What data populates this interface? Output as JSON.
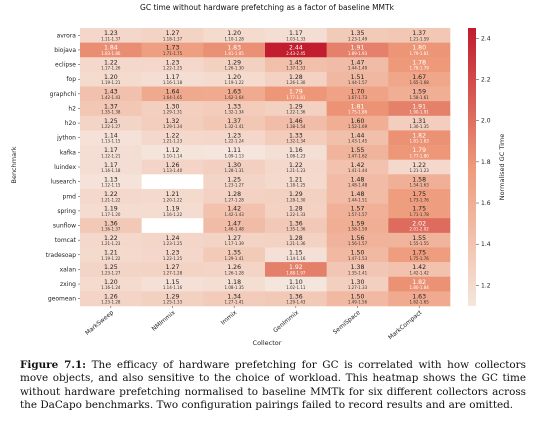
{
  "caption": {
    "label": "Figure 7.1:",
    "text": "The efficacy of hardware prefetching for GC is correlated with how collectors move objects, and also sensitive to the choice of workload. This heatmap shows the GC time without hardware prefetching normalised to baseline MMTk for six different collectors across the DaCapo benchmarks. Two configuration pairings failed to record results and are omitted."
  },
  "colors": {
    "low": "#f5e6dd",
    "mid": "#ee9a7a",
    "high": "#c01b2d",
    "missing": "#ffffff"
  },
  "chart_data": {
    "type": "heatmap",
    "title": "GC time without hardware prefetching as a factor of baseline MMTk",
    "xlabel": "Collector",
    "ylabel": "Benchmark",
    "colorbar_label": "Normalised GC Time",
    "colorbar_range": [
      1.1,
      2.45
    ],
    "colorbar_ticks": [
      "1.2",
      "1.4",
      "1.6",
      "1.8",
      "2.0",
      "2.2",
      "2.4"
    ],
    "columns": [
      "MarkSweep",
      "NMImmix",
      "Immix",
      "GenImmix",
      "SemiSpace",
      "MarkCompact"
    ],
    "rows": [
      {
        "name": "avrora",
        "values": [
          1.23,
          1.27,
          1.2,
          1.17,
          1.35,
          1.37
        ],
        "ci": [
          "1.11-1.37",
          "1.18-1.37",
          "1.10-1.28",
          "1.03-1.33",
          "1.23-1.49",
          "1.21-1.59"
        ]
      },
      {
        "name": "biojava",
        "values": [
          1.84,
          1.73,
          1.83,
          2.44,
          1.91,
          1.8
        ],
        "ci": [
          "1.83-1.86",
          "1.71-1.75",
          "1.81-1.85",
          "2.43-2.45",
          "1.89-1.93",
          "1.79-1.81"
        ]
      },
      {
        "name": "eclipse",
        "values": [
          1.22,
          1.23,
          1.29,
          1.45,
          1.47,
          1.78
        ],
        "ci": [
          "1.17-1.26",
          "1.22-1.25",
          "1.26-1.30",
          "1.37-1.53",
          "1.44-1.49",
          "1.78-1.79"
        ]
      },
      {
        "name": "fop",
        "values": [
          1.2,
          1.17,
          1.2,
          1.28,
          1.51,
          1.67
        ],
        "ci": [
          "1.19-1.21",
          "1.16-1.18",
          "1.19-1.22",
          "1.26-1.30",
          "1.44-1.57",
          "1.65-1.68"
        ]
      },
      {
        "name": "graphchi",
        "values": [
          1.43,
          1.64,
          1.63,
          1.79,
          1.7,
          1.59
        ],
        "ci": [
          "1.42-1.43",
          "1.64-1.65",
          "1.62-1.64",
          "1.77-1.81",
          "1.67-1.73",
          "1.58-1.61"
        ]
      },
      {
        "name": "h2",
        "values": [
          1.37,
          1.3,
          1.33,
          1.29,
          1.81,
          1.91
        ],
        "ci": [
          "1.35-1.38",
          "1.29-1.31",
          "1.32-1.34",
          "1.22-1.36",
          "1.75-1.86",
          "1.90-1.91"
        ]
      },
      {
        "name": "h2o",
        "values": [
          1.25,
          1.32,
          1.37,
          1.46,
          1.6,
          1.31
        ],
        "ci": [
          "1.22-1.27",
          "1.29-1.34",
          "1.32-1.41",
          "1.38-1.54",
          "1.52-1.69",
          "1.30-1.35"
        ]
      },
      {
        "name": "jython",
        "values": [
          1.14,
          1.22,
          1.23,
          1.33,
          1.44,
          1.82
        ],
        "ci": [
          "1.13-1.15",
          "1.21-1.23",
          "1.22-1.24",
          "1.32-1.34",
          "1.43-1.45",
          "1.81-1.83"
        ]
      },
      {
        "name": "kafka",
        "values": [
          1.17,
          1.12,
          1.11,
          1.16,
          1.55,
          1.79
        ],
        "ci": [
          "1.12-1.21",
          "1.10-1.14",
          "1.09-1.13",
          "1.08-1.23",
          "1.47-1.62",
          "1.77-1.80"
        ]
      },
      {
        "name": "luindex",
        "values": [
          1.17,
          1.26,
          1.3,
          1.22,
          1.42,
          1.22
        ],
        "ci": [
          "1.16-1.18",
          "1.13-1.40",
          "1.28-1.31",
          "1.21-1.23",
          "1.41-1.44",
          "1.21-1.23"
        ]
      },
      {
        "name": "lusearch",
        "values": [
          1.13,
          null,
          1.25,
          1.21,
          1.48,
          1.58
        ],
        "ci": [
          "1.12-1.15",
          "",
          "1.23-1.27",
          "1.18-1.25",
          "1.48-1.48",
          "1.54-1.63"
        ]
      },
      {
        "name": "pmd",
        "values": [
          1.22,
          1.21,
          1.28,
          1.29,
          1.48,
          1.75
        ],
        "ci": [
          "1.21-1.22",
          "1.20-1.22",
          "1.27-1.28",
          "1.28-1.30",
          "1.44-1.51",
          "1.73-1.76"
        ]
      },
      {
        "name": "spring",
        "values": [
          1.19,
          1.19,
          1.42,
          1.28,
          1.57,
          1.75
        ],
        "ci": [
          "1.17-1.20",
          "1.16-1.22",
          "1.42-1.43",
          "1.22-1.33",
          "1.57-1.57",
          "1.71-1.78"
        ]
      },
      {
        "name": "sunflow",
        "values": [
          1.36,
          null,
          1.47,
          1.36,
          1.59,
          2.02
        ],
        "ci": [
          "1.36-1.37",
          "",
          "1.46-1.48",
          "1.35-1.36",
          "1.58-1.59",
          "2.01-2.02"
        ]
      },
      {
        "name": "tomcat",
        "values": [
          1.22,
          1.24,
          1.27,
          1.28,
          1.56,
          1.55
        ],
        "ci": [
          "1.21-1.23",
          "1.23-1.25",
          "1.17-1.39",
          "1.21-1.36",
          "1.56-1.57",
          "1.55-1.55"
        ]
      },
      {
        "name": "tradesoap",
        "values": [
          1.21,
          1.23,
          1.35,
          1.15,
          1.5,
          1.75
        ],
        "ci": [
          "1.19-1.22",
          "1.22-1.25",
          "1.29-1.41",
          "1.14-1.16",
          "1.47-1.53",
          "1.75-1.76"
        ]
      },
      {
        "name": "xalan",
        "values": [
          1.25,
          1.27,
          1.26,
          1.92,
          1.38,
          1.42
        ],
        "ci": [
          "1.23-1.27",
          "1.27-1.28",
          "1.26-1.28",
          "1.88-1.97",
          "1.35-1.41",
          "1.42-1.42"
        ]
      },
      {
        "name": "zxing",
        "values": [
          1.2,
          1.15,
          1.18,
          1.1,
          1.3,
          1.82
        ],
        "ci": [
          "1.16-1.24",
          "1.14-1.16",
          "1.08-1.35",
          "1.02-1.11",
          "1.27-1.33",
          "1.80-1.84"
        ]
      },
      {
        "name": "geomean",
        "values": [
          1.26,
          1.29,
          1.34,
          1.36,
          1.5,
          1.63
        ],
        "ci": [
          "1.23-1.28",
          "1.25-1.33",
          "1.27-1.41",
          "1.29-1.43",
          "1.49-1.56",
          "1.62-1.65"
        ]
      }
    ]
  }
}
